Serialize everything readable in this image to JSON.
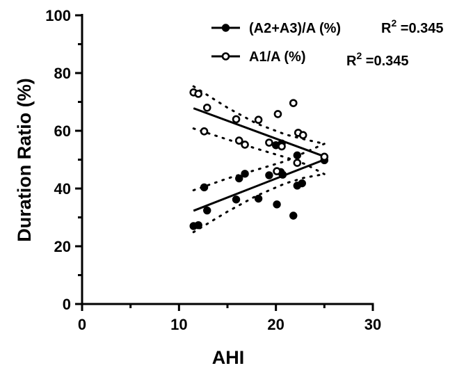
{
  "chart_data": {
    "type": "scatter",
    "title": "",
    "xlabel": "AHI",
    "ylabel": "Duration Ratio (%)",
    "xlim": [
      0,
      30
    ],
    "ylim": [
      0,
      100
    ],
    "x_ticks": [
      "0",
      "10",
      "20",
      "30"
    ],
    "y_ticks": [
      "0",
      "20",
      "40",
      "60",
      "80",
      "100"
    ],
    "grid": false,
    "legend_position": "top-right",
    "series": [
      {
        "name": "(A2+A3)/A (%)",
        "marker": "filled-circle",
        "r2_label": "=0.345",
        "points": [
          [
            11.5,
            27
          ],
          [
            12.0,
            27.3
          ],
          [
            12.6,
            40.4
          ],
          [
            12.9,
            32.4
          ],
          [
            15.9,
            36.2
          ],
          [
            16.2,
            43.5
          ],
          [
            16.8,
            45.1
          ],
          [
            18.2,
            36.5
          ],
          [
            19.3,
            44.6
          ],
          [
            20.0,
            55
          ],
          [
            20.1,
            34.5
          ],
          [
            20.5,
            45.7
          ],
          [
            20.6,
            55.6
          ],
          [
            20.7,
            44.8
          ],
          [
            21.8,
            30.6
          ],
          [
            22.2,
            51.5
          ],
          [
            22.2,
            41
          ],
          [
            22.7,
            41.8
          ],
          [
            25.0,
            49.8
          ]
        ],
        "fit_line": [
          [
            11.5,
            32.3
          ],
          [
            25.0,
            50.0
          ]
        ],
        "ci_upper": [
          [
            11.5,
            39.4
          ],
          [
            15,
            43.5
          ],
          [
            18,
            46.5
          ],
          [
            21,
            49.5
          ],
          [
            23,
            52.5
          ],
          [
            25,
            55.5
          ]
        ],
        "ci_lower": [
          [
            11.5,
            24.9
          ],
          [
            15,
            32
          ],
          [
            18,
            37.5
          ],
          [
            21,
            41.8
          ],
          [
            23,
            43.8
          ],
          [
            25,
            45
          ]
        ]
      },
      {
        "name": "A1/A (%)",
        "marker": "open-circle",
        "r2_label": "=0.345",
        "points": [
          [
            11.5,
            73.3
          ],
          [
            12.0,
            72.8
          ],
          [
            12.6,
            59.8
          ],
          [
            12.9,
            68
          ],
          [
            15.9,
            64
          ],
          [
            16.2,
            56.6
          ],
          [
            16.8,
            55.2
          ],
          [
            18.2,
            63.8
          ],
          [
            19.3,
            55.9
          ],
          [
            20.1,
            46
          ],
          [
            20.2,
            65.8
          ],
          [
            20.6,
            54.6
          ],
          [
            21.8,
            69.6
          ],
          [
            22.2,
            48.9
          ],
          [
            22.3,
            59.3
          ],
          [
            22.8,
            58.5
          ],
          [
            25.0,
            51
          ]
        ],
        "fit_line": [
          [
            11.5,
            67.8
          ],
          [
            25.0,
            51.1
          ]
        ],
        "ci_upper": [
          [
            11.5,
            75.4
          ],
          [
            15,
            68
          ],
          [
            18,
            62.5
          ],
          [
            21,
            58.7
          ],
          [
            23,
            57
          ],
          [
            25,
            55.5
          ]
        ],
        "ci_lower": [
          [
            11.5,
            60.8
          ],
          [
            15,
            57
          ],
          [
            18,
            53.8
          ],
          [
            21,
            50.8
          ],
          [
            23,
            48.5
          ],
          [
            25,
            45
          ]
        ]
      }
    ]
  },
  "r2_prefix": "R",
  "r2_sup": "2"
}
